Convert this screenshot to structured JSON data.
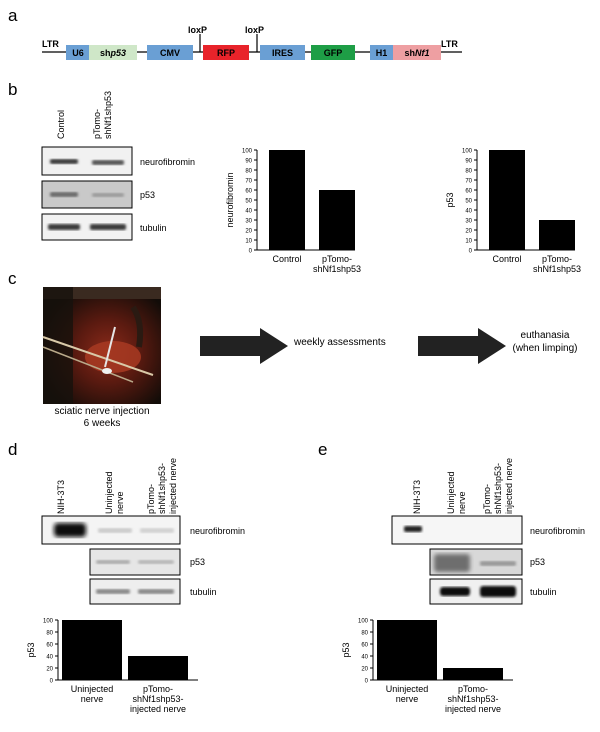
{
  "panels": {
    "a": "a",
    "b": "b",
    "c": "c",
    "d": "d",
    "e": "e"
  },
  "construct": {
    "ltr_left": "LTR",
    "ltr_right": "LTR",
    "loxp1": "loxP",
    "loxp2": "loxP",
    "elements": [
      {
        "label": "U6",
        "italic_part": "",
        "color": "#6a9fd4"
      },
      {
        "label": "sh",
        "italic_part": "p53",
        "color": "#cfe7c8"
      },
      {
        "label": "CMV",
        "italic_part": "",
        "color": "#6a9fd4"
      },
      {
        "label": "RFP",
        "italic_part": "",
        "color": "#e8232a"
      },
      {
        "label": "IRES",
        "italic_part": "",
        "color": "#6a9fd4"
      },
      {
        "label": "GFP",
        "italic_part": "",
        "color": "#1e9e46"
      },
      {
        "label": "H1",
        "italic_part": "",
        "color": "#6a9fd4"
      },
      {
        "label": "sh",
        "italic_part": "Nf1",
        "color": "#ee9fa2"
      }
    ]
  },
  "blot_b": {
    "lane_labels": [
      "Control",
      "pTomo-",
      "shNf1shp53"
    ],
    "bands": [
      "neurofibromin",
      "p53",
      "tubulin"
    ]
  },
  "chart_data": [
    {
      "type": "bar",
      "id": "b-neurofibromin",
      "categories": [
        "Control",
        "pTomo-shNf1shp53"
      ],
      "category_lines": [
        [
          "Control"
        ],
        [
          "pTomo-",
          "shNf1shp53"
        ]
      ],
      "values": [
        100,
        60
      ],
      "ylabel": "neurofibromin",
      "ylim": [
        0,
        100
      ],
      "yticks": [
        0,
        10,
        20,
        30,
        40,
        50,
        60,
        70,
        80,
        90,
        100
      ]
    },
    {
      "type": "bar",
      "id": "b-p53",
      "categories": [
        "Control",
        "pTomo-shNf1shp53"
      ],
      "category_lines": [
        [
          "Control"
        ],
        [
          "pTomo-",
          "shNf1shp53"
        ]
      ],
      "values": [
        100,
        30
      ],
      "ylabel": "p53",
      "ylim": [
        0,
        100
      ],
      "yticks": [
        0,
        10,
        20,
        30,
        40,
        50,
        60,
        70,
        80,
        90,
        100
      ]
    },
    {
      "type": "bar",
      "id": "d-p53",
      "categories": [
        "Uninjected nerve",
        "pTomo-shNf1shp53-injected nerve"
      ],
      "category_lines": [
        [
          "Uninjected",
          "nerve"
        ],
        [
          "pTomo-",
          "shNf1shp53-",
          "injected nerve"
        ]
      ],
      "values": [
        100,
        40
      ],
      "ylabel": "p53",
      "ylim": [
        0,
        100
      ],
      "yticks": [
        0,
        20,
        40,
        60,
        80,
        100
      ]
    },
    {
      "type": "bar",
      "id": "e-p53",
      "categories": [
        "Uninjected nerve",
        "pTomo-shNf1shp53-injected nerve"
      ],
      "category_lines": [
        [
          "Uninjected",
          "nerve"
        ],
        [
          "pTomo-",
          "shNf1shp53-",
          "injected nerve"
        ]
      ],
      "values": [
        100,
        20
      ],
      "ylabel": "p53",
      "ylim": [
        0,
        100
      ],
      "yticks": [
        0,
        20,
        40,
        60,
        80,
        100
      ]
    }
  ],
  "workflow": {
    "photo_caption_1": "sciatic nerve injection",
    "photo_caption_2": "6 weeks",
    "step2": "weekly assessments",
    "step3_1": "euthanasia",
    "step3_2": "(when limping)"
  },
  "blot_d": {
    "lane_labels": [
      "NIH-3T3",
      "Uninjected",
      "nerve",
      "pTomo-",
      "shNf1shp53-",
      "injected nerve"
    ],
    "bands": [
      "neurofibromin",
      "p53",
      "tubulin"
    ]
  },
  "blot_e": {
    "lane_labels": [
      "NIH-3T3",
      "Uninjected",
      "nerve",
      "pTomo-",
      "shNf1shp53-",
      "injected nerve"
    ],
    "bands": [
      "neurofibromin",
      "p53",
      "tubulin"
    ]
  }
}
